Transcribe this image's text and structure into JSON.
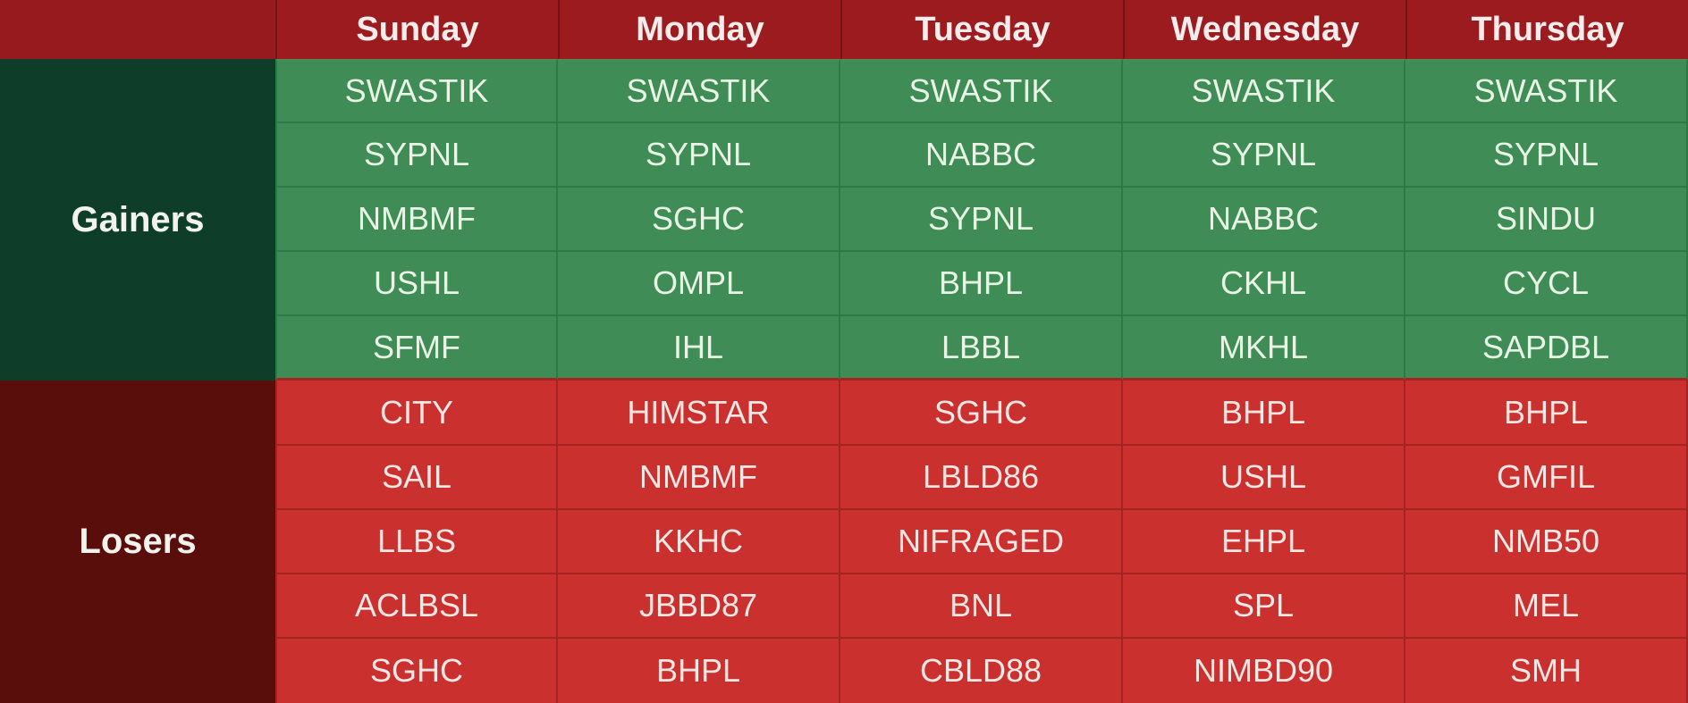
{
  "chart_data": {
    "type": "table",
    "days": [
      "Sunday",
      "Monday",
      "Tuesday",
      "Wednesday",
      "Thursday"
    ],
    "sections": [
      {
        "label": "Gainers",
        "rows": [
          [
            "SWASTIK",
            "SWASTIK",
            "SWASTIK",
            "SWASTIK",
            "SWASTIK"
          ],
          [
            "SYPNL",
            "SYPNL",
            "NABBC",
            "SYPNL",
            "SYPNL"
          ],
          [
            "NMBMF",
            "SGHC",
            "SYPNL",
            "NABBC",
            "SINDU"
          ],
          [
            "USHL",
            "OMPL",
            "BHPL",
            "CKHL",
            "CYCL"
          ],
          [
            "SFMF",
            "IHL",
            "LBBL",
            "MKHL",
            "SAPDBL"
          ]
        ]
      },
      {
        "label": "Losers",
        "rows": [
          [
            "CITY",
            "HIMSTAR",
            "SGHC",
            "BHPL",
            "BHPL"
          ],
          [
            "SAIL",
            "NMBMF",
            "LBLD86",
            "USHL",
            "GMFIL"
          ],
          [
            "LLBS",
            "KKHC",
            "NIFRAGED",
            "EHPL",
            "NMB50"
          ],
          [
            "ACLBSL",
            "JBBD87",
            "BNL",
            "SPL",
            "MEL"
          ],
          [
            "SGHC",
            "BHPL",
            "CBLD88",
            "NIMBD90",
            "SMH"
          ]
        ]
      }
    ]
  },
  "colors": {
    "header_bg": "#9b1b1e",
    "header_divider": "#711317",
    "header_text": "#f6eceb",
    "gainers_label_bg": "#0e3d2a",
    "losers_label_bg": "#5a0e0c",
    "gainer_cell_bg": "#3f8c56",
    "gainer_cell_border": "#2c7a45",
    "gainer_text": "#e9f4e6",
    "loser_cell_bg": "#ca302d",
    "loser_cell_border": "#a32421",
    "loser_text": "#f6e7e5"
  }
}
